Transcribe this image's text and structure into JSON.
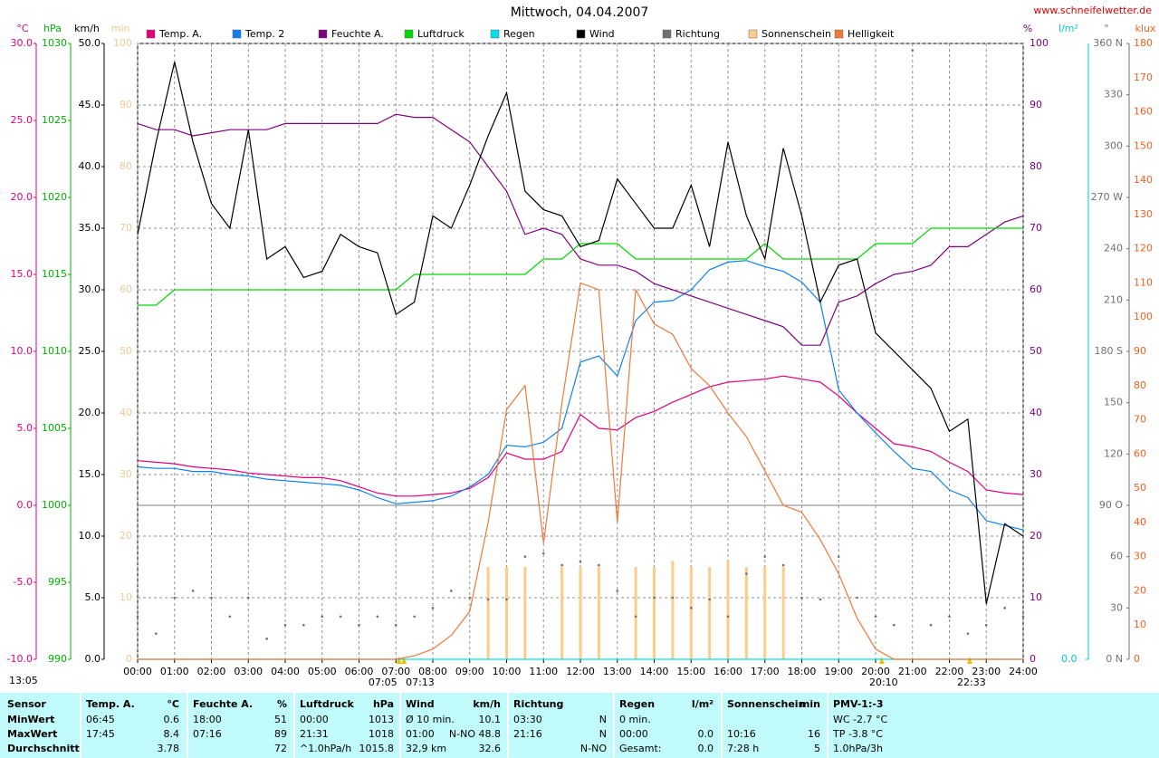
{
  "chart_data": {
    "type": "line",
    "title": "Mittwoch, 04.04.2007",
    "source": "www.schneifelwetter.de",
    "updated": "13:05",
    "x": [
      0,
      0.5,
      1,
      1.5,
      2,
      2.5,
      3,
      3.5,
      4,
      4.5,
      5,
      5.5,
      6,
      6.5,
      7,
      7.5,
      8,
      8.5,
      9,
      9.5,
      10,
      10.5,
      11,
      11.5,
      12,
      12.5,
      13,
      13.5,
      14,
      14.5,
      15,
      15.5,
      16,
      16.5,
      17,
      17.5,
      18,
      18.5,
      19,
      19.5,
      20,
      20.5,
      21,
      21.5,
      22,
      22.5,
      23,
      23.5,
      24
    ],
    "xlim": [
      0,
      24
    ],
    "xticks": [
      {
        "value": 0,
        "label": "00:00"
      },
      {
        "value": 1,
        "label": "01:00"
      },
      {
        "value": 2,
        "label": "02:00"
      },
      {
        "value": 3,
        "label": "03:00"
      },
      {
        "value": 4,
        "label": "04:00"
      },
      {
        "value": 5,
        "label": "05:00"
      },
      {
        "value": 6,
        "label": "06:00"
      },
      {
        "value": 7,
        "label": "07:00"
      },
      {
        "value": 8,
        "label": "08:00"
      },
      {
        "value": 9,
        "label": "09:00"
      },
      {
        "value": 10,
        "label": "10:00"
      },
      {
        "value": 11,
        "label": "11:00"
      },
      {
        "value": 12,
        "label": "12:00"
      },
      {
        "value": 13,
        "label": "13:00"
      },
      {
        "value": 14,
        "label": "14:00"
      },
      {
        "value": 15,
        "label": "15:00"
      },
      {
        "value": 16,
        "label": "16:00"
      },
      {
        "value": 17,
        "label": "17:00"
      },
      {
        "value": 18,
        "label": "18:00"
      },
      {
        "value": 19,
        "label": "19:00"
      },
      {
        "value": 20,
        "label": "20:00"
      },
      {
        "value": 21,
        "label": "21:00"
      },
      {
        "value": 22,
        "label": "22:00"
      },
      {
        "value": 23,
        "label": "23:00"
      },
      {
        "value": 24,
        "label": "24:00"
      }
    ],
    "markers": [
      {
        "value": 7.083,
        "label": "07:05"
      },
      {
        "value": 7.217,
        "label": "07:13"
      },
      {
        "value": 20.167,
        "label": "20:10"
      },
      {
        "value": 22.55,
        "label": "22:33"
      }
    ],
    "grid": true,
    "zero_line": true,
    "axes": {
      "temp": {
        "label": "°C",
        "color": "#e0007f",
        "lim": [
          -10,
          30
        ],
        "ticks": [
          {
            "value": -10,
            "label": "-10.0"
          },
          {
            "value": -5,
            "label": "-5.0"
          },
          {
            "value": 0,
            "label": "0.0"
          },
          {
            "value": 5,
            "label": "5.0"
          },
          {
            "value": 10,
            "label": "10.0"
          },
          {
            "value": 15,
            "label": "15.0"
          },
          {
            "value": 20,
            "label": "20.0"
          },
          {
            "value": 25,
            "label": "25.0"
          },
          {
            "value": 30,
            "label": "30.0"
          }
        ]
      },
      "pressure": {
        "label": "hPa",
        "color": "#00b000",
        "lim": [
          990,
          1030
        ],
        "ticks": [
          990,
          995,
          1000,
          1005,
          1010,
          1015,
          1020,
          1025,
          1030
        ]
      },
      "wind": {
        "label": "km/h",
        "color": "#000000",
        "lim": [
          0,
          50
        ],
        "ticks": [
          {
            "value": 0,
            "label": "0.0"
          },
          {
            "value": 5,
            "label": "5.0"
          },
          {
            "value": 10,
            "label": "10.0"
          },
          {
            "value": 15,
            "label": "15.0"
          },
          {
            "value": 20,
            "label": "20.0"
          },
          {
            "value": 25,
            "label": "25.0"
          },
          {
            "value": 30,
            "label": "30.0"
          },
          {
            "value": 35,
            "label": "35.0"
          },
          {
            "value": 40,
            "label": "40.0"
          },
          {
            "value": 45,
            "label": "45.0"
          },
          {
            "value": 50,
            "label": "50.0"
          }
        ]
      },
      "sun": {
        "label": "min",
        "color": "#f0c890",
        "lim": [
          0,
          100
        ],
        "ticks": [
          0,
          10,
          20,
          30,
          40,
          50,
          60,
          70,
          80,
          90,
          100
        ]
      },
      "humidity": {
        "label": "%",
        "color": "#800080",
        "lim": [
          0,
          100
        ],
        "ticks": [
          0,
          10,
          20,
          30,
          40,
          50,
          60,
          70,
          80,
          90,
          100
        ]
      },
      "rain": {
        "label": "l/m²",
        "color": "#00c8d0",
        "lim": [
          0,
          10
        ],
        "ticks": [
          {
            "value": 0,
            "label": "0.0"
          }
        ]
      },
      "direction": {
        "label": "°",
        "color": "#707070",
        "lim": [
          0,
          360
        ],
        "ticks": [
          {
            "value": 0,
            "label": "0 N"
          },
          30,
          60,
          {
            "value": 90,
            "label": "90 O"
          },
          120,
          150,
          {
            "value": 180,
            "label": "180 S"
          },
          210,
          240,
          {
            "value": 270,
            "label": "270 W"
          },
          300,
          330,
          {
            "value": 360,
            "label": "360 N"
          }
        ]
      },
      "light": {
        "label": "klux",
        "color": "#f06020",
        "lim": [
          0,
          180
        ],
        "ticks": [
          0,
          10,
          20,
          30,
          40,
          50,
          60,
          70,
          80,
          90,
          100,
          110,
          120,
          130,
          140,
          150,
          160,
          170,
          180
        ]
      }
    },
    "series": [
      {
        "name": "Temp. A.",
        "color": "#e0007f",
        "axis": "temp",
        "style": "line",
        "values": [
          2.9,
          2.8,
          2.7,
          2.5,
          2.4,
          2.3,
          2.1,
          2.0,
          1.9,
          1.8,
          1.8,
          1.6,
          1.2,
          0.8,
          0.6,
          0.6,
          0.7,
          0.8,
          1.1,
          1.8,
          3.4,
          3.0,
          3.0,
          3.5,
          5.9,
          5.0,
          4.9,
          5.7,
          6.1,
          6.7,
          7.2,
          7.7,
          8.0,
          8.1,
          8.2,
          8.4,
          8.2,
          8.0,
          7.1,
          6.0,
          5.0,
          4.0,
          3.8,
          3.5,
          2.8,
          2.2,
          1.0,
          0.8,
          0.7
        ]
      },
      {
        "name": "Temp. 2",
        "color": "#1080f0",
        "axis": "temp",
        "style": "line",
        "values": [
          2.5,
          2.4,
          2.4,
          2.2,
          2.2,
          2.0,
          1.9,
          1.7,
          1.6,
          1.5,
          1.4,
          1.3,
          1.0,
          0.5,
          0.1,
          0.2,
          0.3,
          0.6,
          1.2,
          2.0,
          3.9,
          3.8,
          4.1,
          5.0,
          9.3,
          9.7,
          8.4,
          12.0,
          13.2,
          13.3,
          14.0,
          15.3,
          15.8,
          15.9,
          15.5,
          15.2,
          14.5,
          13.2,
          7.5,
          6.0,
          4.7,
          3.5,
          2.4,
          2.2,
          1.0,
          0.5,
          -1.0,
          -1.3,
          -1.6
        ]
      },
      {
        "name": "Feuchte A.",
        "color": "#800080",
        "axis": "humidity",
        "style": "line",
        "values": [
          87,
          86,
          86,
          85,
          85.5,
          86,
          86,
          86,
          87,
          87,
          87,
          87,
          87,
          87,
          88.5,
          88,
          88,
          86,
          84,
          80,
          76,
          69,
          70,
          69,
          65,
          64,
          64,
          63,
          61,
          60,
          59,
          58,
          57,
          56,
          55,
          54,
          51,
          51,
          58,
          59,
          61,
          62.5,
          63,
          64,
          67,
          67,
          69,
          71,
          72
        ]
      },
      {
        "name": "Luftdruck",
        "color": "#00d800",
        "axis": "pressure",
        "style": "line",
        "values": [
          1013,
          1013,
          1014,
          1014,
          1014,
          1014,
          1014,
          1014,
          1014,
          1014,
          1014,
          1014,
          1014,
          1014,
          1014,
          1015,
          1015,
          1015,
          1015,
          1015,
          1015,
          1015,
          1016,
          1016,
          1017,
          1017,
          1017,
          1016,
          1016,
          1016,
          1016,
          1016,
          1016,
          1016,
          1017,
          1016,
          1016,
          1016,
          1016,
          1016,
          1017,
          1017,
          1017,
          1018,
          1018,
          1018,
          1018,
          1018,
          1018
        ]
      },
      {
        "name": "Regen",
        "color": "#00e0e8",
        "axis": "rain",
        "style": "line",
        "values": [
          0,
          0,
          0,
          0,
          0,
          0,
          0,
          0,
          0,
          0,
          0,
          0,
          0,
          0,
          0,
          0,
          0,
          0,
          0,
          0,
          0,
          0,
          0,
          0,
          0,
          0,
          0,
          0,
          0,
          0,
          0,
          0,
          0,
          0,
          0,
          0,
          0,
          0,
          0,
          0,
          0,
          0,
          0,
          0,
          0,
          0,
          0,
          0,
          0
        ]
      },
      {
        "name": "Wind",
        "color": "#000000",
        "axis": "wind",
        "style": "line",
        "values": [
          34.5,
          42,
          48.5,
          42,
          37,
          35,
          43,
          32.5,
          33.5,
          31,
          31.5,
          34.5,
          33.5,
          33,
          28,
          29,
          36,
          35,
          38.5,
          42.5,
          46,
          38,
          36.5,
          36,
          33.5,
          34,
          39,
          37,
          35,
          35,
          38.5,
          33.5,
          42,
          36,
          32.5,
          41.5,
          36,
          29,
          32,
          32.5,
          26.5,
          25,
          23.5,
          22,
          18.5,
          19.5,
          4.5,
          11,
          10
        ]
      },
      {
        "name": "Richtung",
        "color": "#707070",
        "axis": "direction",
        "style": "dot",
        "values": [
          25,
          15,
          36,
          40,
          36,
          25,
          36,
          12,
          20,
          20,
          25,
          25,
          20,
          25,
          20,
          25,
          30,
          40,
          36,
          35,
          35,
          60,
          62,
          55,
          57,
          55,
          40,
          25,
          36,
          36,
          30,
          35,
          25,
          50,
          60,
          55,
          36,
          35,
          60,
          36,
          25,
          20,
          356,
          20,
          25,
          15,
          20,
          30,
          25
        ]
      },
      {
        "name": "Sonnenschein",
        "color": "#ffcc88",
        "axis": "sun",
        "style": "bar",
        "values": [
          0,
          0,
          0,
          0,
          0,
          0,
          0,
          0,
          0,
          0,
          0,
          0,
          0,
          0,
          0,
          0,
          0,
          0,
          0,
          15,
          15,
          15,
          0,
          15,
          15,
          15,
          0,
          15,
          15,
          16,
          15,
          15,
          16,
          15,
          15,
          15,
          0,
          0,
          0,
          0,
          0,
          0,
          0,
          0,
          0,
          0,
          0,
          0,
          0
        ]
      },
      {
        "name": "Helligkeit",
        "color": "#f07838",
        "axis": "light",
        "style": "line",
        "values": [
          0,
          0,
          0,
          0,
          0,
          0,
          0,
          0,
          0,
          0,
          0,
          0,
          0,
          0,
          0,
          1,
          3,
          7,
          14,
          40,
          73,
          80,
          34,
          75,
          110,
          108,
          40,
          108,
          98,
          95,
          85,
          80,
          72,
          65,
          55,
          45,
          43,
          35,
          25,
          12,
          3,
          0,
          0,
          0,
          0,
          0,
          0,
          0,
          0
        ]
      }
    ]
  },
  "table": {
    "header": [
      [
        "Sensor"
      ],
      [
        "Temp. A.",
        "°C"
      ],
      [
        "Feuchte A.",
        "%"
      ],
      [
        "Luftdruck",
        "hPa"
      ],
      [
        "Wind",
        "km/h"
      ],
      [
        "Richtung"
      ],
      [
        "Regen",
        "l/m²"
      ],
      [
        "Sonnenschein",
        "min"
      ],
      [
        "PMV-1:-3"
      ]
    ],
    "rows": [
      [
        [
          "MinWert"
        ],
        [
          "06:45",
          "0.6"
        ],
        [
          "18:00",
          "51"
        ],
        [
          "00:00",
          "1013"
        ],
        [
          "Ø 10 min.",
          "10.1"
        ],
        [
          "03:30",
          "N"
        ],
        [
          "0 min."
        ],
        null,
        [
          "WC -2.7 °C"
        ]
      ],
      [
        [
          "MaxWert"
        ],
        [
          "17:45",
          "8.4"
        ],
        [
          "07:16",
          "89"
        ],
        [
          "21:31",
          "1018"
        ],
        [
          "01:00",
          "N-NO 48.8"
        ],
        [
          "21:16",
          "N"
        ],
        [
          "00:00",
          "0.0"
        ],
        [
          "10:16",
          "16"
        ],
        [
          "TP -3.8 °C"
        ]
      ],
      [
        [
          "Durchschnitt"
        ],
        [
          null,
          "3.78"
        ],
        [
          null,
          "72"
        ],
        [
          "^1.0hPa/h",
          "1015.8"
        ],
        [
          "32,9 km",
          "32.6"
        ],
        [
          null,
          "N-NO"
        ],
        [
          "Gesamt:",
          "0.0"
        ],
        [
          "7:28 h",
          "5"
        ],
        [
          "1.0hPa/3h"
        ]
      ]
    ]
  }
}
